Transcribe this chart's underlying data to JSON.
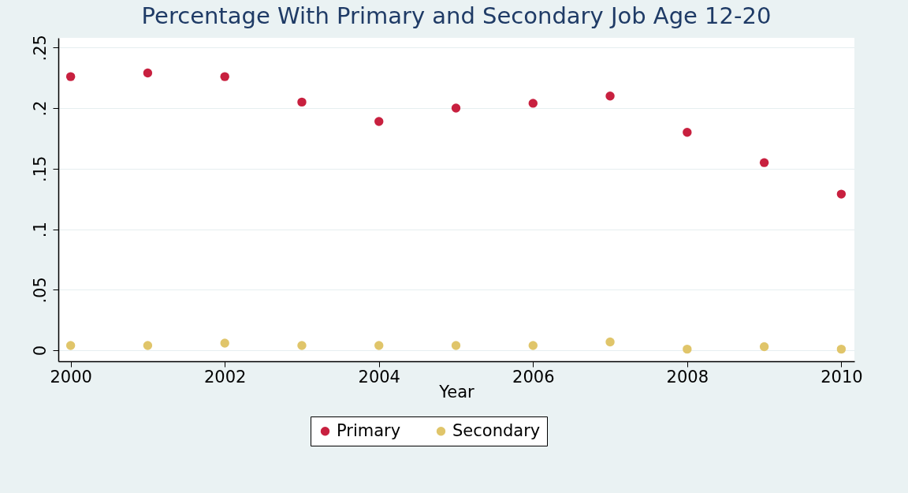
{
  "chart_data": {
    "type": "scatter",
    "title": "Percentage With Primary and Secondary Job Age 12-20",
    "xlabel": "Year",
    "x": [
      2000,
      2001,
      2002,
      2003,
      2004,
      2005,
      2006,
      2007,
      2008,
      2009,
      2010
    ],
    "series": [
      {
        "name": "Primary",
        "color": "#c8203f",
        "values": [
          0.226,
          0.229,
          0.226,
          0.205,
          0.189,
          0.2,
          0.204,
          0.21,
          0.18,
          0.155,
          0.129
        ]
      },
      {
        "name": "Secondary",
        "color": "#e0c56a",
        "values": [
          0.004,
          0.004,
          0.006,
          0.004,
          0.004,
          0.004,
          0.004,
          0.007,
          0.001,
          0.003,
          0.001
        ]
      }
    ],
    "xlim": [
      1999.84,
      2010.17
    ],
    "xticks": [
      2000,
      2002,
      2004,
      2006,
      2008,
      2010
    ],
    "ylim": [
      -0.009,
      0.258
    ],
    "yticks": [
      {
        "value": 0,
        "label": "0"
      },
      {
        "value": 0.05,
        "label": ".05"
      },
      {
        "value": 0.1,
        "label": ".1"
      },
      {
        "value": 0.15,
        "label": ".15"
      },
      {
        "value": 0.2,
        "label": ".2"
      },
      {
        "value": 0.25,
        "label": ".25"
      }
    ],
    "grid": "y",
    "legend": "bottom",
    "marker": "circle"
  }
}
